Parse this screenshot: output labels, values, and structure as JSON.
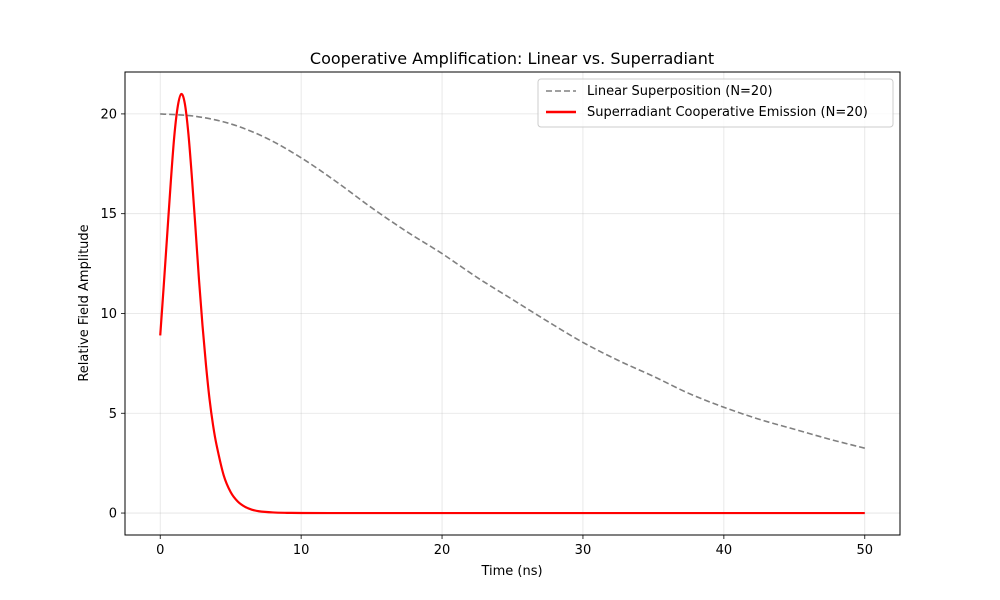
{
  "chart_data": {
    "type": "line",
    "title": "Cooperative Amplification: Linear vs. Superradiant",
    "xlabel": "Time (ns)",
    "ylabel": "Relative Field Amplitude",
    "xlim": [
      -2.5,
      52.5
    ],
    "ylim": [
      -1.1,
      22.1
    ],
    "xticks": [
      0,
      10,
      20,
      30,
      40,
      50
    ],
    "yticks": [
      0,
      5,
      10,
      15,
      20
    ],
    "grid": true,
    "legend_position": "top-right",
    "series": [
      {
        "name": "Linear Superposition (N=20)",
        "color": "#808080",
        "dash": "dashed",
        "x": [
          0,
          2.5,
          5,
          7.5,
          10,
          12.5,
          15,
          17.5,
          20,
          22.5,
          25,
          27.5,
          30,
          32.5,
          35,
          37.5,
          40,
          42.5,
          45,
          47.5,
          50
        ],
        "y": [
          20,
          19.88,
          19.5,
          18.8,
          17.8,
          16.6,
          15.3,
          14.1,
          13.0,
          11.8,
          10.7,
          9.6,
          8.55,
          7.65,
          6.85,
          6.0,
          5.3,
          4.7,
          4.2,
          3.7,
          3.25
        ]
      },
      {
        "name": "Superradiant Cooperative Emission (N=20)",
        "color": "#ff0000",
        "dash": "solid",
        "x": [
          0,
          0.25,
          0.5,
          0.75,
          1.0,
          1.25,
          1.5,
          1.75,
          2.0,
          2.25,
          2.5,
          2.75,
          3.0,
          3.25,
          3.5,
          3.75,
          4.0,
          4.5,
          5.0,
          5.5,
          6.0,
          6.5,
          7.0,
          8.0,
          9.0,
          10.0,
          12.0,
          15.0,
          20.0,
          30.0,
          40.0,
          50.0
        ],
        "y": [
          8.9,
          11.4,
          14.0,
          16.6,
          18.9,
          20.4,
          21.0,
          20.5,
          19.0,
          16.8,
          14.3,
          11.7,
          9.4,
          7.4,
          5.7,
          4.4,
          3.4,
          1.9,
          1.05,
          0.58,
          0.32,
          0.17,
          0.09,
          0.03,
          0.01,
          0.004,
          0.0,
          0.0,
          0.0,
          0.0,
          0.0,
          0.0
        ]
      }
    ]
  }
}
